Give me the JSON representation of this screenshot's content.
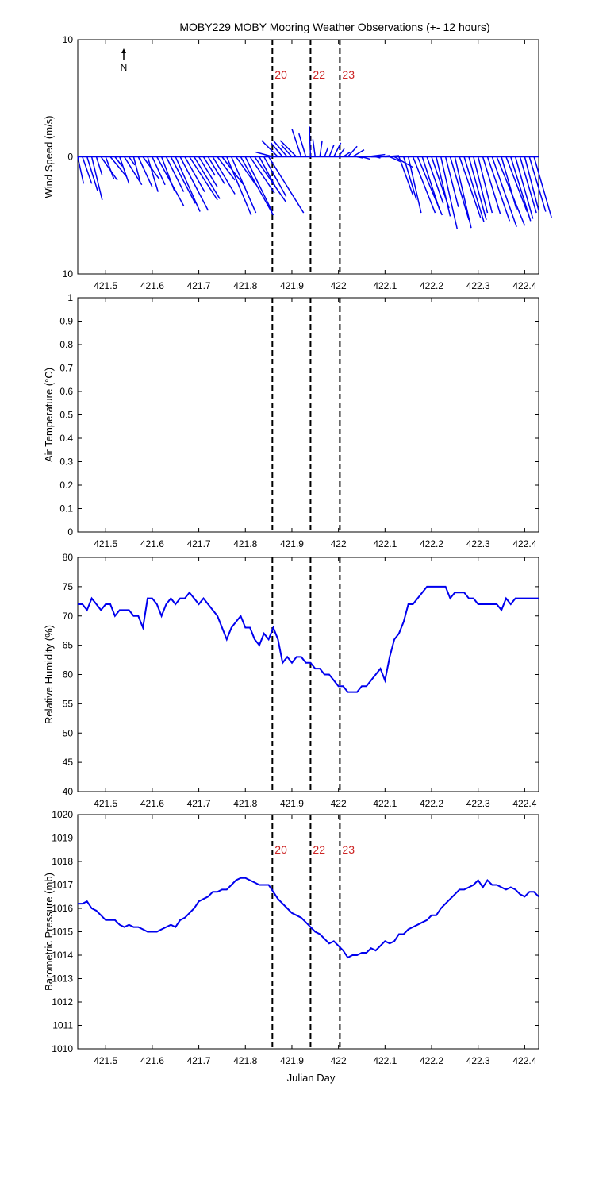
{
  "title": "MOBY229 MOBY Mooring Weather Observations (+- 12 hours)",
  "colors": {
    "series": "#0000ee",
    "marker_label": "#cc2222",
    "axis": "#000000"
  },
  "x_tick_labels": [
    "421.5",
    "421.6",
    "421.7",
    "421.8",
    "421.9",
    "422",
    "422.1",
    "422.2",
    "422.3",
    "422.4"
  ],
  "xlabel": "Julian Day",
  "north_label": "N",
  "markers": [
    {
      "label": "20",
      "x": 421.858
    },
    {
      "label": "22",
      "x": 421.94
    },
    {
      "label": "23",
      "x": 422.003
    }
  ],
  "chart_data": [
    {
      "type": "vector",
      "ylabel": "Wind Speed (m/s)",
      "xlim": [
        421.44,
        422.43
      ],
      "ylim": [
        -10,
        10
      ],
      "y_tick_labels": [
        "10",
        "0",
        "10"
      ],
      "marker_labels_shown": true,
      "note": "wind barbs from baseline; u = eastward, v = northward components (m/s)",
      "x": [
        421.44,
        421.45,
        421.46,
        421.47,
        421.48,
        421.49,
        421.5,
        421.51,
        421.52,
        421.53,
        421.54,
        421.55,
        421.56,
        421.57,
        421.58,
        421.59,
        421.6,
        421.61,
        421.62,
        421.63,
        421.64,
        421.65,
        421.66,
        421.67,
        421.68,
        421.69,
        421.7,
        421.71,
        421.72,
        421.73,
        421.74,
        421.75,
        421.76,
        421.77,
        421.78,
        421.79,
        421.8,
        421.81,
        421.82,
        421.83,
        421.84,
        421.85,
        421.86,
        421.87,
        421.88,
        421.89,
        421.9,
        421.91,
        421.92,
        421.93,
        421.94,
        421.95,
        421.96,
        421.97,
        421.98,
        421.99,
        422.0,
        422.01,
        422.02,
        422.03,
        422.04,
        422.05,
        422.06,
        422.07,
        422.08,
        422.09,
        422.1,
        422.11,
        422.12,
        422.13,
        422.14,
        422.15,
        422.16,
        422.17,
        422.18,
        422.19,
        422.2,
        422.21,
        422.22,
        422.23,
        422.24,
        422.25,
        422.26,
        422.27,
        422.28,
        422.29,
        422.3,
        422.31,
        422.32,
        422.33,
        422.34,
        422.35,
        422.36,
        422.37,
        422.38,
        422.39,
        422.4,
        422.41,
        422.42
      ],
      "u": [
        0.5,
        0.8,
        0.9,
        0.9,
        0.5,
        1.4,
        0.7,
        1.4,
        0.6,
        0.8,
        1.5,
        0.5,
        0.6,
        1.2,
        1.4,
        0.9,
        1.1,
        2.3,
        1.1,
        1.5,
        2.1,
        2.1,
        2.4,
        1.7,
        2.4,
        2.2,
        1.6,
        1.0,
        1.4,
        1.9,
        1.5,
        2.0,
        2.1,
        2.1,
        1.7,
        2.8,
        2.3,
        2.1,
        2.7,
        1.4,
        1.9,
        3.0,
        -1.5,
        -1.4,
        -1.0,
        -1.2,
        -0.9,
        -1.4,
        -0.8,
        -0.6,
        -0.1,
        -0.2,
        0.2,
        0.3,
        0.4,
        0.6,
        0.5,
        0.6,
        0.8,
        1.0,
        0.5,
        0.7,
        1.6,
        0.9,
        0.4,
        0.8,
        1.2,
        0.9,
        1.6,
        1.2,
        1.1,
        1.1,
        1.9,
        2.1,
        1.5,
        1.4,
        1.5,
        1.2,
        1.4,
        1.1,
        1.6,
        1.4,
        1.8,
        1.7,
        1.5,
        1.2,
        1.2,
        1.5,
        1.9,
        2.1,
        2.4,
        1.3,
        1.8,
        1.7,
        1.5,
        1.4,
        1.2,
        1.4,
        1.5
      ],
      "v": [
        -2.3,
        -2.3,
        -2.9,
        -3.7,
        -1.6,
        -2.0,
        -1.9,
        -1.7,
        -0.8,
        -2.3,
        -2.4,
        -0.7,
        -2.3,
        -2.6,
        -1.9,
        -3.0,
        -2.4,
        -4.2,
        -2.9,
        -3.0,
        -4.0,
        -4.7,
        -4.6,
        -3.0,
        -3.7,
        -3.6,
        -2.6,
        -1.6,
        -2.3,
        -3.2,
        -2.0,
        -2.6,
        -5.0,
        -4.8,
        -2.4,
        -5.0,
        -4.7,
        -3.1,
        -3.9,
        -2.6,
        -3.4,
        -4.8,
        0.4,
        1.4,
        1.2,
        1.4,
        1.0,
        1.4,
        2.4,
        2.0,
        2.6,
        1.5,
        1.4,
        0.8,
        1.0,
        1.2,
        0.7,
        0.4,
        0.9,
        0.6,
        -0.1,
        -0.2,
        0.2,
        0.0,
        -0.1,
        0.1,
        0.1,
        -0.4,
        -0.9,
        -3.3,
        -3.7,
        -4.8,
        -4.8,
        -5.0,
        -4.6,
        -4.0,
        -4.4,
        -5.1,
        -6.2,
        -4.3,
        -5.4,
        -6.1,
        -5.2,
        -5.6,
        -5.4,
        -4.8,
        -4.8,
        -4.9,
        -5.5,
        -6.0,
        -5.9,
        -4.5,
        -4.7,
        -5.5,
        -5.3,
        -4.8,
        -4.6,
        -4.7,
        -5.2
      ]
    },
    {
      "type": "line",
      "ylabel": "Air Temperature (°C)",
      "xlim": [
        421.44,
        422.43
      ],
      "ylim": [
        0,
        1
      ],
      "y_tick_labels": [
        "0",
        "0.1",
        "0.2",
        "0.3",
        "0.4",
        "0.5",
        "0.6",
        "0.7",
        "0.8",
        "0.9",
        "1"
      ],
      "marker_labels_shown": false,
      "x": [],
      "y": []
    },
    {
      "type": "line",
      "ylabel": "Relative Humidity (%)",
      "xlim": [
        421.44,
        422.43
      ],
      "ylim": [
        40,
        80
      ],
      "y_tick_labels": [
        "40",
        "45",
        "50",
        "55",
        "60",
        "65",
        "70",
        "75",
        "80"
      ],
      "marker_labels_shown": false,
      "x": [
        421.44,
        421.45,
        421.46,
        421.47,
        421.48,
        421.49,
        421.5,
        421.51,
        421.52,
        421.53,
        421.54,
        421.55,
        421.56,
        421.57,
        421.58,
        421.59,
        421.6,
        421.61,
        421.62,
        421.63,
        421.64,
        421.65,
        421.66,
        421.67,
        421.68,
        421.69,
        421.7,
        421.71,
        421.72,
        421.73,
        421.74,
        421.75,
        421.76,
        421.77,
        421.78,
        421.79,
        421.8,
        421.81,
        421.82,
        421.83,
        421.84,
        421.85,
        421.86,
        421.87,
        421.88,
        421.89,
        421.9,
        421.91,
        421.92,
        421.93,
        421.94,
        421.95,
        421.96,
        421.97,
        421.98,
        421.99,
        422.0,
        422.01,
        422.02,
        422.03,
        422.04,
        422.05,
        422.06,
        422.07,
        422.08,
        422.09,
        422.1,
        422.11,
        422.12,
        422.13,
        422.14,
        422.15,
        422.16,
        422.17,
        422.18,
        422.19,
        422.2,
        422.21,
        422.22,
        422.23,
        422.24,
        422.25,
        422.26,
        422.27,
        422.28,
        422.29,
        422.3,
        422.31,
        422.32,
        422.33,
        422.34,
        422.35,
        422.36,
        422.37,
        422.38,
        422.39,
        422.4,
        422.41,
        422.42,
        422.43
      ],
      "y": [
        72,
        72,
        71,
        73,
        72,
        71,
        72,
        72,
        70,
        71,
        71,
        71,
        70,
        70,
        68,
        73,
        73,
        72,
        70,
        72,
        73,
        72,
        73,
        73,
        74,
        73,
        72,
        73,
        72,
        71,
        70,
        68,
        66,
        68,
        69,
        70,
        68,
        68,
        66,
        65,
        67,
        66,
        68,
        66,
        62,
        63,
        62,
        63,
        63,
        62,
        62,
        61,
        61,
        60,
        60,
        59,
        58,
        58,
        57,
        57,
        57,
        58,
        58,
        59,
        60,
        61,
        59,
        63,
        66,
        67,
        69,
        72,
        72,
        73,
        74,
        75,
        75,
        75,
        75,
        75,
        73,
        74,
        74,
        74,
        73,
        73,
        72,
        72,
        72,
        72,
        72,
        71,
        73,
        72,
        73,
        73,
        73,
        73,
        73,
        73
      ]
    },
    {
      "type": "line",
      "ylabel": "Barometric Pressure (mb)",
      "xlim": [
        421.44,
        422.43
      ],
      "ylim": [
        1010,
        1020
      ],
      "y_tick_labels": [
        "1010",
        "1011",
        "1012",
        "1013",
        "1014",
        "1015",
        "1016",
        "1017",
        "1018",
        "1019",
        "1020"
      ],
      "marker_labels_shown": true,
      "x": [
        421.44,
        421.45,
        421.46,
        421.47,
        421.48,
        421.49,
        421.5,
        421.51,
        421.52,
        421.53,
        421.54,
        421.55,
        421.56,
        421.57,
        421.58,
        421.59,
        421.6,
        421.61,
        421.62,
        421.63,
        421.64,
        421.65,
        421.66,
        421.67,
        421.68,
        421.69,
        421.7,
        421.71,
        421.72,
        421.73,
        421.74,
        421.75,
        421.76,
        421.77,
        421.78,
        421.79,
        421.8,
        421.81,
        421.82,
        421.83,
        421.84,
        421.85,
        421.86,
        421.87,
        421.88,
        421.89,
        421.9,
        421.91,
        421.92,
        421.93,
        421.94,
        421.95,
        421.96,
        421.97,
        421.98,
        421.99,
        422.0,
        422.01,
        422.02,
        422.03,
        422.04,
        422.05,
        422.06,
        422.07,
        422.08,
        422.09,
        422.1,
        422.11,
        422.12,
        422.13,
        422.14,
        422.15,
        422.16,
        422.17,
        422.18,
        422.19,
        422.2,
        422.21,
        422.22,
        422.23,
        422.24,
        422.25,
        422.26,
        422.27,
        422.28,
        422.29,
        422.3,
        422.31,
        422.32,
        422.33,
        422.34,
        422.35,
        422.36,
        422.37,
        422.38,
        422.39,
        422.4,
        422.41,
        422.42,
        422.43
      ],
      "y": [
        1016.2,
        1016.2,
        1016.3,
        1016.0,
        1015.9,
        1015.7,
        1015.5,
        1015.5,
        1015.5,
        1015.3,
        1015.2,
        1015.3,
        1015.2,
        1015.2,
        1015.1,
        1015.0,
        1015.0,
        1015.0,
        1015.1,
        1015.2,
        1015.3,
        1015.2,
        1015.5,
        1015.6,
        1015.8,
        1016.0,
        1016.3,
        1016.4,
        1016.5,
        1016.7,
        1016.7,
        1016.8,
        1016.8,
        1017.0,
        1017.2,
        1017.3,
        1017.3,
        1017.2,
        1017.1,
        1017.0,
        1017.0,
        1017.0,
        1016.7,
        1016.4,
        1016.2,
        1016.0,
        1015.8,
        1015.7,
        1015.6,
        1015.4,
        1015.2,
        1015.0,
        1014.9,
        1014.7,
        1014.5,
        1014.6,
        1014.4,
        1014.2,
        1013.9,
        1014.0,
        1014.0,
        1014.1,
        1014.1,
        1014.3,
        1014.2,
        1014.4,
        1014.6,
        1014.5,
        1014.6,
        1014.9,
        1014.9,
        1015.1,
        1015.2,
        1015.3,
        1015.4,
        1015.5,
        1015.7,
        1015.7,
        1016.0,
        1016.2,
        1016.4,
        1016.6,
        1016.8,
        1016.8,
        1016.9,
        1017.0,
        1017.2,
        1016.9,
        1017.2,
        1017.0,
        1017.0,
        1016.9,
        1016.8,
        1016.9,
        1016.8,
        1016.6,
        1016.5,
        1016.7,
        1016.7,
        1016.5
      ]
    }
  ]
}
